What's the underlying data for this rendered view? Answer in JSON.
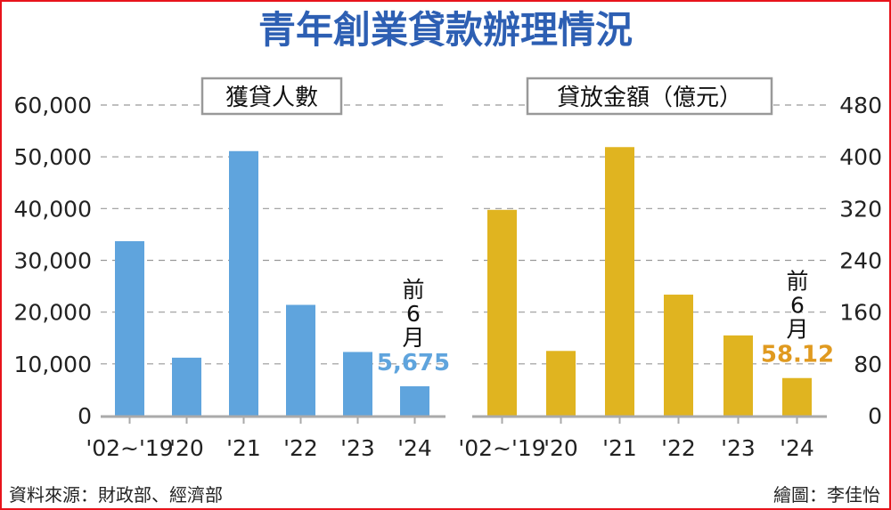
{
  "title": "青年創業貸款辦理情況",
  "source": "資料來源：財政部、經濟部",
  "credit": "繪圖：李佳怡",
  "colors": {
    "left": "#5fa4dd",
    "right": "#e0b420",
    "title": "#2d5fb3",
    "left_label": "#5fa4dd",
    "right_label": "#e09a20",
    "frame": "#e8141c"
  },
  "chart_data": [
    {
      "type": "bar",
      "title": "獲貸人數",
      "categories": [
        "'02~'19",
        "'20",
        "'21",
        "'22",
        "'23",
        "'24"
      ],
      "values": [
        33700,
        11200,
        51100,
        21400,
        12300,
        5675
      ],
      "ylim": [
        0,
        60000
      ],
      "yticks": [
        "0",
        "10,000",
        "20,000",
        "30,000",
        "40,000",
        "50,000",
        "60,000"
      ],
      "axis_side": "left",
      "grid": true,
      "annotation": {
        "note": [
          "前",
          "6",
          "月"
        ],
        "value_label": "5,675"
      }
    },
    {
      "type": "bar",
      "title": "貸放金額（億元）",
      "categories": [
        "'02~'19",
        "'20",
        "'21",
        "'22",
        "'23",
        "'24"
      ],
      "values": [
        318,
        100,
        415,
        187,
        124,
        58.12
      ],
      "ylim": [
        0,
        480
      ],
      "yticks": [
        "0",
        "80",
        "160",
        "240",
        "320",
        "400",
        "480"
      ],
      "axis_side": "right",
      "grid": true,
      "annotation": {
        "note": [
          "前",
          "6",
          "月"
        ],
        "value_label": "58.12"
      }
    }
  ]
}
